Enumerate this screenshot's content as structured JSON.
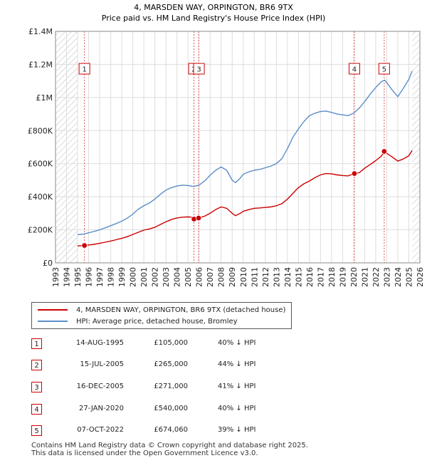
{
  "chart_data": {
    "type": "line",
    "title": "4, MARSDEN WAY, ORPINGTON, BR6 9TX",
    "subtitle": "Price paid vs. HM Land Registry's House Price Index (HPI)",
    "xlabel": "",
    "ylabel": "",
    "xlim": [
      1993,
      2026
    ],
    "ylim": [
      0,
      1400000
    ],
    "y_ticks": [
      0,
      200000,
      400000,
      600000,
      800000,
      1000000,
      1200000,
      1400000
    ],
    "y_tick_labels": [
      "£0",
      "£200K",
      "£400K",
      "£600K",
      "£800K",
      "£1M",
      "£1.2M",
      "£1.4M"
    ],
    "x_ticks": [
      1993,
      1994,
      1995,
      1996,
      1997,
      1998,
      1999,
      2000,
      2001,
      2002,
      2003,
      2004,
      2005,
      2006,
      2007,
      2008,
      2009,
      2010,
      2011,
      2012,
      2013,
      2014,
      2015,
      2016,
      2017,
      2018,
      2019,
      2020,
      2021,
      2022,
      2023,
      2024,
      2025,
      2026
    ],
    "x_tick_labels": [
      "1993",
      "1994",
      "1995",
      "1996",
      "1997",
      "1998",
      "1999",
      "2000",
      "2001",
      "2002",
      "2003",
      "2004",
      "2005",
      "2006",
      "2007",
      "2008",
      "2009",
      "2010",
      "2011",
      "2012",
      "2013",
      "2014",
      "2015",
      "2016",
      "2017",
      "2018",
      "2019",
      "2020",
      "2021",
      "2022",
      "2023",
      "2024",
      "2025",
      "2026"
    ],
    "grid": true,
    "hatched_ranges": [
      [
        1993,
        1995.0
      ],
      [
        2025.3,
        2026
      ]
    ],
    "series": [
      {
        "name": "4, MARSDEN WAY, ORPINGTON, BR6 9TX (detached house)",
        "color": "#cc0000",
        "x": [
          1995.0,
          1995.6,
          1996.0,
          1996.5,
          1997.0,
          1997.5,
          1998.0,
          1998.5,
          1999.0,
          1999.5,
          2000.0,
          2000.5,
          2001.0,
          2001.5,
          2002.0,
          2002.5,
          2003.0,
          2003.5,
          2004.0,
          2004.5,
          2005.0,
          2005.5,
          2006.0,
          2006.5,
          2007.0,
          2007.5,
          2008.0,
          2008.5,
          2009.0,
          2009.3,
          2009.7,
          2010.0,
          2010.5,
          2011.0,
          2011.5,
          2012.0,
          2012.5,
          2013.0,
          2013.5,
          2014.0,
          2014.5,
          2015.0,
          2015.5,
          2016.0,
          2016.5,
          2017.0,
          2017.5,
          2018.0,
          2018.5,
          2019.0,
          2019.5,
          2020.0,
          2020.5,
          2021.0,
          2021.5,
          2022.0,
          2022.5,
          2022.8,
          2023.0,
          2023.5,
          2024.0,
          2024.5,
          2025.0,
          2025.3
        ],
        "values": [
          102000,
          105000,
          108000,
          112000,
          118000,
          125000,
          132000,
          140000,
          148000,
          158000,
          172000,
          185000,
          198000,
          205000,
          215000,
          232000,
          248000,
          262000,
          272000,
          276000,
          278000,
          275000,
          272000,
          282000,
          300000,
          322000,
          338000,
          330000,
          300000,
          285000,
          298000,
          312000,
          322000,
          330000,
          332000,
          335000,
          338000,
          345000,
          358000,
          385000,
          420000,
          455000,
          478000,
          495000,
          515000,
          532000,
          540000,
          538000,
          532000,
          528000,
          526000,
          538000,
          545000,
          572000,
          595000,
          618000,
          645000,
          674060,
          662000,
          640000,
          615000,
          628000,
          648000,
          680000
        ]
      },
      {
        "name": "HPI: Average price, detached house, Bromley",
        "color": "#5b8ec9",
        "x": [
          1995.0,
          1995.6,
          1996.0,
          1996.5,
          1997.0,
          1997.5,
          1998.0,
          1998.5,
          1999.0,
          1999.5,
          2000.0,
          2000.5,
          2001.0,
          2001.5,
          2002.0,
          2002.5,
          2003.0,
          2003.5,
          2004.0,
          2004.5,
          2005.0,
          2005.5,
          2006.0,
          2006.5,
          2007.0,
          2007.5,
          2008.0,
          2008.5,
          2009.0,
          2009.3,
          2009.7,
          2010.0,
          2010.5,
          2011.0,
          2011.5,
          2012.0,
          2012.5,
          2013.0,
          2013.5,
          2014.0,
          2014.5,
          2015.0,
          2015.5,
          2016.0,
          2016.5,
          2017.0,
          2017.5,
          2018.0,
          2018.5,
          2019.0,
          2019.5,
          2020.0,
          2020.5,
          2021.0,
          2021.5,
          2022.0,
          2022.5,
          2022.8,
          2023.0,
          2023.5,
          2024.0,
          2024.5,
          2025.0,
          2025.3
        ],
        "values": [
          170000,
          175000,
          182000,
          190000,
          200000,
          212000,
          225000,
          238000,
          252000,
          270000,
          295000,
          325000,
          345000,
          362000,
          385000,
          415000,
          440000,
          455000,
          465000,
          470000,
          468000,
          462000,
          470000,
          495000,
          530000,
          560000,
          580000,
          560000,
          500000,
          485000,
          510000,
          535000,
          550000,
          560000,
          565000,
          575000,
          585000,
          600000,
          630000,
          690000,
          760000,
          810000,
          855000,
          890000,
          905000,
          915000,
          918000,
          910000,
          900000,
          895000,
          890000,
          905000,
          935000,
          975000,
          1020000,
          1060000,
          1095000,
          1105000,
          1090000,
          1045000,
          1005000,
          1055000,
          1110000,
          1160000
        ]
      }
    ],
    "sales": [
      {
        "label": "1",
        "x": 1995.62,
        "price": 105000
      },
      {
        "label": "2",
        "x": 2005.54,
        "price": 265000
      },
      {
        "label": "3",
        "x": 2005.96,
        "price": 271000
      },
      {
        "label": "4",
        "x": 2020.07,
        "price": 540000
      },
      {
        "label": "5",
        "x": 2022.77,
        "price": 674060
      }
    ]
  },
  "legend": {
    "property_label": "4, MARSDEN WAY, ORPINGTON, BR6 9TX (detached house)",
    "hpi_label": "HPI: Average price, detached house, Bromley",
    "property_color": "#cc0000",
    "hpi_color": "#5b8ec9"
  },
  "transactions": [
    {
      "num": "1",
      "date": "14-AUG-1995",
      "price": "£105,000",
      "hpi": "40% ↓ HPI"
    },
    {
      "num": "2",
      "date": "15-JUL-2005",
      "price": "£265,000",
      "hpi": "44% ↓ HPI"
    },
    {
      "num": "3",
      "date": "16-DEC-2005",
      "price": "£271,000",
      "hpi": "41% ↓ HPI"
    },
    {
      "num": "4",
      "date": "27-JAN-2020",
      "price": "£540,000",
      "hpi": "40% ↓ HPI"
    },
    {
      "num": "5",
      "date": "07-OCT-2022",
      "price": "£674,060",
      "hpi": "39% ↓ HPI"
    }
  ],
  "footer": {
    "line1": "Contains HM Land Registry data © Crown copyright and database right 2025.",
    "line2": "This data is licensed under the Open Government Licence v3.0."
  }
}
